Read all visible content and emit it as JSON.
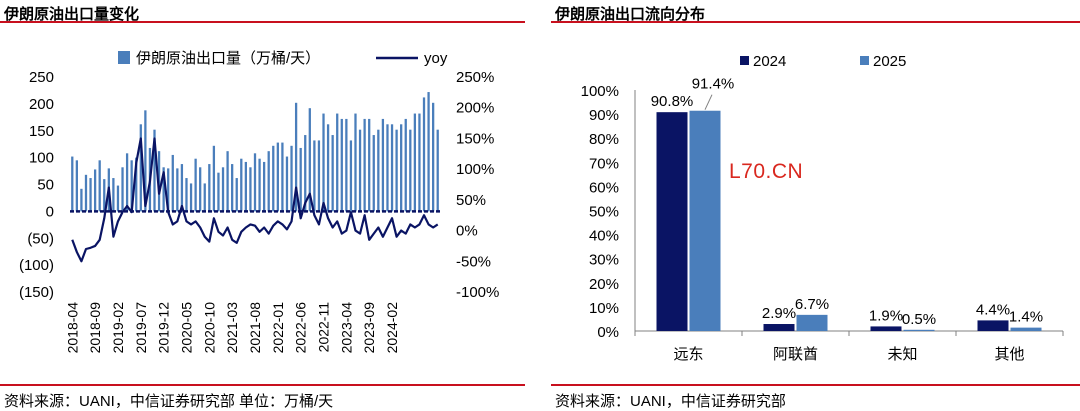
{
  "watermark": "L70.CN",
  "panels": {
    "left": {
      "title": "伊朗原油出口量变化",
      "source": "资料来源：UANI，中信证券研究部 单位：万桶/天"
    },
    "right": {
      "title": "伊朗原油出口流向分布",
      "source": "资料来源：UANI，中信证券研究部"
    }
  },
  "colors": {
    "light_bar": "#4a7ebb",
    "dark_bar": "#0a1464",
    "line": "#0a1464",
    "rule": "#c8101e"
  },
  "chart_data": [
    {
      "type": "bar+line",
      "title": "伊朗原油出口量变化",
      "legend": {
        "placement": "top",
        "bar_label": "伊朗原油出口量（万桶/天）",
        "line_label": "yoy"
      },
      "y_left": {
        "lim": [
          -150,
          250
        ],
        "ticks": [
          "250",
          "200",
          "150",
          "100",
          "50",
          "0",
          "(50)",
          "(100)",
          "(150)"
        ]
      },
      "y_right": {
        "lim": [
          -1.0,
          2.5
        ],
        "ticks": [
          "250%",
          "200%",
          "150%",
          "100%",
          "50%",
          "0%",
          "-50%",
          "-100%"
        ]
      },
      "x_tick_labels": [
        "2018-04",
        "2018-09",
        "2019-02",
        "2019-07",
        "2019-12",
        "2020-05",
        "2020-10",
        "2021-03",
        "2021-08",
        "2022-01",
        "2022-06",
        "2022-11",
        "2023-04",
        "2023-09",
        "2024-02"
      ],
      "bar_series": {
        "name": "伊朗原油出口量（万桶/天）",
        "start": "2018-04",
        "values": [
          102,
          95,
          42,
          68,
          62,
          78,
          95,
          60,
          80,
          62,
          48,
          82,
          108,
          95,
          100,
          162,
          188,
          118,
          152,
          112,
          82,
          80,
          105,
          80,
          88,
          62,
          52,
          98,
          82,
          52,
          88,
          122,
          72,
          82,
          112,
          88,
          62,
          98,
          92,
          82,
          108,
          98,
          92,
          112,
          122,
          128,
          128,
          102,
          122,
          202,
          118,
          142,
          192,
          132,
          132,
          182,
          162,
          142,
          182,
          172,
          172,
          132,
          182,
          152,
          172,
          172,
          142,
          152,
          172,
          162,
          162,
          152,
          162,
          172,
          152,
          182,
          182,
          212,
          222,
          202,
          152
        ]
      },
      "line_series": {
        "name": "yoy",
        "start": "2018-04",
        "values": [
          -0.15,
          -0.35,
          -0.5,
          -0.3,
          -0.28,
          -0.25,
          -0.15,
          0.2,
          0.7,
          -0.1,
          0.15,
          0.3,
          0.4,
          0.3,
          1.1,
          1.5,
          0.4,
          0.8,
          1.5,
          0.6,
          0.95,
          0.3,
          0.1,
          0.15,
          0.4,
          0.15,
          0.1,
          0.15,
          0.05,
          -0.1,
          -0.18,
          0.2,
          -0.02,
          -0.08,
          0.05,
          -0.15,
          -0.2,
          -0.02,
          0.05,
          0.1,
          0.08,
          -0.02,
          0.05,
          -0.05,
          0.08,
          0.15,
          0.1,
          0.02,
          0.15,
          0.7,
          0.2,
          0.45,
          0.6,
          0.25,
          0.1,
          0.45,
          0.2,
          0.05,
          0.15,
          -0.05,
          0.0,
          0.3,
          0.0,
          -0.05,
          0.25,
          -0.15,
          -0.05,
          0.05,
          -0.1,
          0.05,
          0.2,
          -0.1,
          0.0,
          -0.05,
          0.1,
          0.05,
          0.1,
          0.25,
          0.1,
          0.05,
          0.1
        ]
      }
    },
    {
      "type": "bar",
      "title": "伊朗原油出口流向分布",
      "categories": [
        "远东",
        "阿联酋",
        "未知",
        "其他"
      ],
      "series": [
        {
          "name": "2024",
          "values": [
            90.8,
            2.9,
            1.9,
            4.4
          ],
          "labels": [
            "90.8%",
            "2.9%",
            "1.9%",
            "4.4%"
          ]
        },
        {
          "name": "2025",
          "values": [
            91.4,
            6.7,
            0.5,
            1.4
          ],
          "labels": [
            "91.4%",
            "6.7%",
            "0.5%",
            "1.4%"
          ]
        }
      ],
      "ylim": [
        0,
        100
      ],
      "y_ticks": [
        "100%",
        "90%",
        "80%",
        "70%",
        "60%",
        "50%",
        "40%",
        "30%",
        "20%",
        "10%",
        "0%"
      ],
      "legend": {
        "placement": "top"
      }
    }
  ]
}
